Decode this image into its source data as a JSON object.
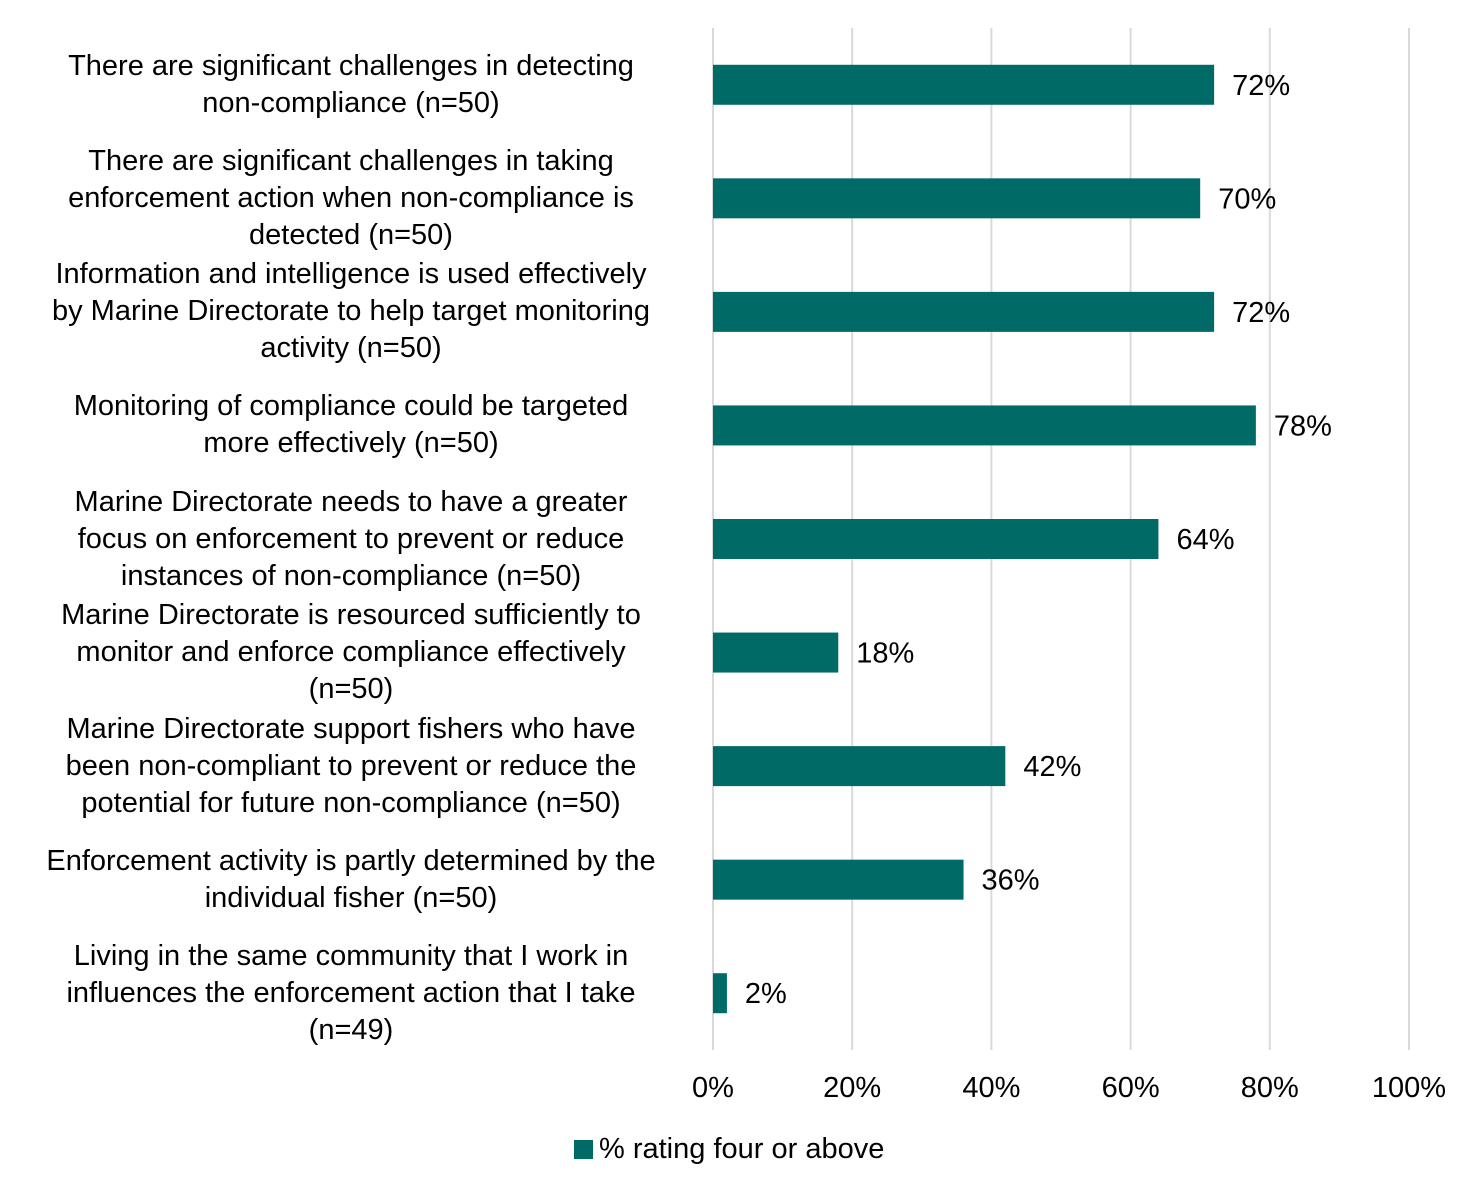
{
  "chart_data": {
    "type": "bar",
    "orientation": "horizontal",
    "categories": [
      "There are significant challenges in detecting\nnon-compliance (n=50)",
      "There are significant challenges in taking\nenforcement action when non-compliance is\ndetected (n=50)",
      "Information and intelligence is used effectively\nby Marine Directorate to help target monitoring\nactivity (n=50)",
      "Monitoring of compliance could be targeted\nmore effectively (n=50)",
      "Marine Directorate needs  to have a greater\nfocus on enforcement  to prevent or reduce\ninstances of  non-compliance (n=50)",
      "Marine Directorate is resourced sufficiently to\nmonitor and enforce compliance effectively\n(n=50)",
      "Marine Directorate support fishers who have\nbeen non-compliant to prevent or reduce the\npotential  for future non-compliance (n=50)",
      "Enforcement activity is partly determined by the\nindividual fisher (n=50)",
      "Living in the same community that I work in\ninfluences the enforcement action that I take\n(n=49)"
    ],
    "series": [
      {
        "name": "% rating four or above",
        "values": [
          72,
          70,
          72,
          78,
          64,
          18,
          42,
          36,
          2
        ],
        "data_labels": [
          "72%",
          "70%",
          "72%",
          "78%",
          "64%",
          "18%",
          "42%",
          "36%",
          "2%"
        ],
        "color": "#006a67"
      }
    ],
    "xlim": [
      0,
      100
    ],
    "x_ticks": [
      0,
      20,
      40,
      60,
      80,
      100
    ],
    "x_tick_labels": [
      "0%",
      "20%",
      "40%",
      "60%",
      "80%",
      "100%"
    ],
    "grid": "vertical",
    "grid_color": "#d9d9d9",
    "legend_position": "bottom"
  }
}
